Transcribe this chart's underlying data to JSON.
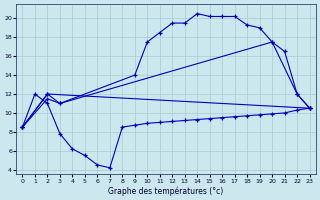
{
  "xlabel": "Graphe des températures (°c)",
  "bg_color": "#cce8ee",
  "grid_color": "#a8ccd0",
  "line_color": "#0000bb",
  "xlim": [
    -0.5,
    23.5
  ],
  "ylim": [
    3.5,
    21.5
  ],
  "xticks": [
    0,
    1,
    2,
    3,
    4,
    5,
    6,
    7,
    8,
    9,
    10,
    11,
    12,
    13,
    14,
    15,
    16,
    17,
    18,
    19,
    20,
    21,
    22,
    23
  ],
  "yticks": [
    4,
    6,
    8,
    10,
    12,
    14,
    16,
    18,
    20
  ],
  "curve_min_x": [
    0,
    1,
    2,
    3,
    4,
    5,
    6,
    7,
    8,
    9,
    10,
    11,
    12,
    13,
    14,
    15,
    16,
    17,
    18,
    19,
    20,
    21,
    22,
    23
  ],
  "curve_min_y": [
    8.5,
    12.0,
    11.0,
    7.8,
    6.2,
    5.5,
    4.5,
    4.2,
    8.5,
    8.7,
    8.9,
    9.0,
    9.1,
    9.2,
    9.3,
    9.4,
    9.5,
    9.6,
    9.7,
    9.8,
    9.9,
    10.0,
    10.3,
    10.5
  ],
  "curve_trend1_x": [
    0,
    2,
    23
  ],
  "curve_trend1_y": [
    8.5,
    12.0,
    10.5
  ],
  "curve_trend2_x": [
    0,
    2,
    3,
    20,
    22,
    23
  ],
  "curve_trend2_y": [
    8.5,
    11.5,
    11.0,
    17.5,
    12.0,
    10.5
  ],
  "curve_max_x": [
    0,
    2,
    3,
    9,
    10,
    11,
    12,
    13,
    14,
    15,
    16,
    17,
    18,
    19,
    20,
    21,
    22,
    23
  ],
  "curve_max_y": [
    8.5,
    12.0,
    11.0,
    14.0,
    17.5,
    18.5,
    19.5,
    19.5,
    20.5,
    20.2,
    20.2,
    20.2,
    19.3,
    19.0,
    17.5,
    16.5,
    12.0,
    10.5
  ]
}
